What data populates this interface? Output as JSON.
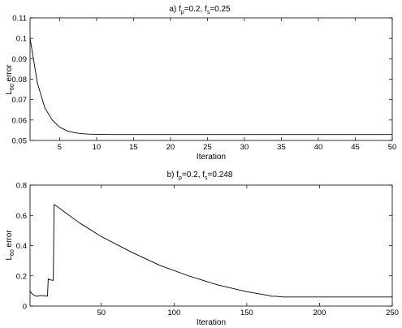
{
  "chart_data": [
    {
      "type": "line",
      "title": {
        "prefix": "a)  f",
        "sub1": "p",
        "mid": "=0.2, f",
        "sub2": "s",
        "suffix": "=0.25"
      },
      "xlabel": "Iteration",
      "ylabel": {
        "main": "L",
        "sub": "60",
        "rest": " error"
      },
      "xlim": [
        1,
        50
      ],
      "ylim": [
        0.05,
        0.11
      ],
      "xticks": [
        5,
        10,
        15,
        20,
        25,
        30,
        35,
        40,
        45,
        50
      ],
      "yticks": [
        0.05,
        0.06,
        0.07,
        0.08,
        0.09,
        0.1,
        0.11
      ],
      "ytick_labels": [
        "0.05",
        "0.06",
        "0.07",
        "0.08",
        "0.09",
        "0.1",
        "0.11"
      ],
      "grid": false,
      "series": [
        {
          "x": [
            1,
            2,
            3,
            4,
            5,
            6,
            7,
            8,
            9,
            10,
            12,
            15,
            20,
            30,
            40,
            50
          ],
          "values": [
            0.1,
            0.078,
            0.066,
            0.06,
            0.0565,
            0.0547,
            0.0538,
            0.0533,
            0.0531,
            0.053,
            0.0529,
            0.0529,
            0.0529,
            0.0529,
            0.0529,
            0.0529
          ]
        }
      ]
    },
    {
      "type": "line",
      "title": {
        "prefix": "b)  f",
        "sub1": "p",
        "mid": "=0.2, f",
        "sub2": "s",
        "suffix": "=0.248"
      },
      "xlabel": "Iteration",
      "ylabel": {
        "main": "L",
        "sub": "60",
        "rest": " error"
      },
      "xlim": [
        1,
        250
      ],
      "ylim": [
        0,
        0.8
      ],
      "xticks": [
        50,
        100,
        150,
        200,
        250
      ],
      "yticks": [
        0,
        0.2,
        0.4,
        0.6,
        0.8
      ],
      "ytick_labels": [
        "0",
        "0.2",
        "0.4",
        "0.6",
        "0.8"
      ],
      "grid": false,
      "series": [
        {
          "x": [
            1,
            2,
            4,
            6,
            8,
            12,
            13,
            13.5,
            14,
            17,
            17.5,
            18,
            25,
            35,
            50,
            70,
            90,
            110,
            130,
            150,
            165,
            167,
            168,
            170,
            175,
            180,
            200,
            220,
            250
          ],
          "values": [
            0.1,
            0.085,
            0.07,
            0.065,
            0.07,
            0.066,
            0.066,
            0.18,
            0.175,
            0.17,
            0.67,
            0.67,
            0.62,
            0.55,
            0.46,
            0.36,
            0.27,
            0.2,
            0.14,
            0.095,
            0.07,
            0.065,
            0.065,
            0.065,
            0.06,
            0.06,
            0.06,
            0.06,
            0.06
          ]
        }
      ]
    }
  ]
}
